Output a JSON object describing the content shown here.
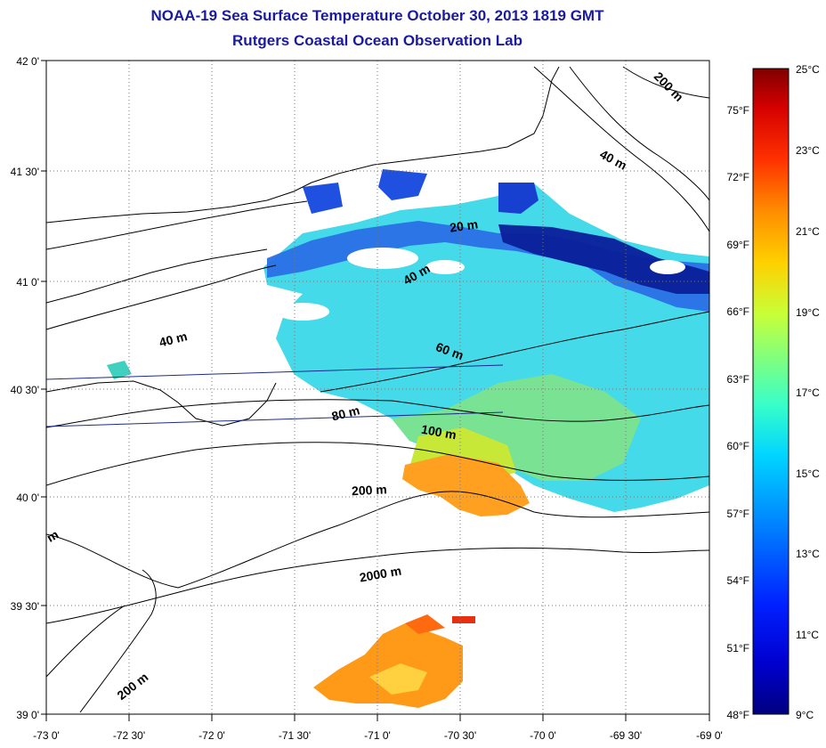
{
  "title_line1": "NOAA-19 Sea Surface Temperature October 30, 2013 1819 GMT",
  "title_line2": "Rutgers Coastal Ocean Observation Lab",
  "map": {
    "lat_labels": [
      "42 0'",
      "41 30'",
      "41 0'",
      "40 30'",
      "40 0'",
      "39 30'",
      "39 0'"
    ],
    "lon_labels": [
      "-73 0'",
      "-72 30'",
      "-72 0'",
      "-71 30'",
      "-71 0'",
      "-70 30'",
      "-70 0'",
      "-69 30'",
      "-69 0'"
    ],
    "contour_labels": [
      "200 m",
      "40 m",
      "20 m",
      "40 m",
      "40 m",
      "60 m",
      "80 m",
      "100 m",
      "200 m",
      "2000 m",
      "200 m",
      "m"
    ]
  },
  "colorbar": {
    "celsius_labels": [
      "25°C",
      "23°C",
      "21°C",
      "19°C",
      "17°C",
      "15°C",
      "13°C",
      "11°C",
      "9°C"
    ],
    "fahrenheit_labels": [
      "75°F",
      "72°F",
      "69°F",
      "66°F",
      "63°F",
      "60°F",
      "57°F",
      "54°F",
      "51°F",
      "48°F"
    ],
    "colors": [
      "#7f0000",
      "#d40000",
      "#ff3000",
      "#ff8c00",
      "#ffd000",
      "#c8ff38",
      "#7fff7f",
      "#38ffc8",
      "#00d4ff",
      "#0080ff",
      "#0020ff",
      "#0000d0",
      "#00007f"
    ]
  }
}
